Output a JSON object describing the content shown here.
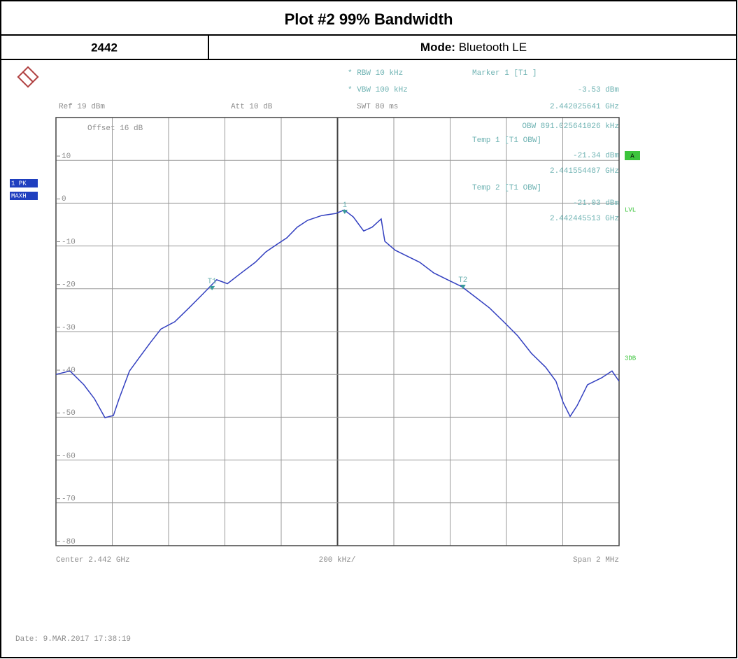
{
  "header": {
    "title": "Plot #2 99% Bandwidth",
    "channel": "2442",
    "mode_label": "Mode:",
    "mode": "Bluetooth LE"
  },
  "chart_data": {
    "type": "line",
    "ref": "Ref  19 dBm",
    "att": "Att  10 dB",
    "offset": "Offset  16 dB",
    "rbw": "* RBW  10 kHz",
    "vbw": "* VBW  100 kHz",
    "swt": "SWT  80 ms",
    "obw": "OBW 891.025641026 kHz",
    "trace_labels": [
      "1 PK",
      "MAXH"
    ],
    "side_labels": [
      "A",
      "LVL",
      "3DB"
    ],
    "center": "Center  2.442 GHz",
    "per_div": "200 kHz/",
    "span": "Span  2 MHz",
    "date": "Date: 9.MAR.2017  17:38:19",
    "xlim": [
      2.441,
      2.443
    ],
    "ylim": [
      -81,
      19
    ],
    "yticks": [
      10,
      0,
      -10,
      -20,
      -30,
      -40,
      -50,
      -60,
      -70,
      -80
    ],
    "grid": true,
    "color": "#3340c0",
    "markers": [
      {
        "name": "Marker 1 [T1 ]",
        "label": "1",
        "x": 2.442025641,
        "y": -3.53,
        "x_label": "2.442025641 GHz",
        "y_label": "-3.53 dBm"
      },
      {
        "name": "Temp 1 [T1 OBW]",
        "label": "T1",
        "x": 2.441554487,
        "y": -21.34,
        "x_label": "2.441554487 GHz",
        "y_label": "-21.34 dBm"
      },
      {
        "name": "Temp 2 [T1 OBW]",
        "label": "T2",
        "x": 2.442445513,
        "y": -21.03,
        "x_label": "2.442445513 GHz",
        "y_label": "-21.03 dBm"
      }
    ],
    "x": [
      2.441,
      2.44105,
      2.441099,
      2.441137,
      2.441174,
      2.441204,
      2.441224,
      2.441261,
      2.441298,
      2.441335,
      2.441373,
      2.441422,
      2.441472,
      2.441522,
      2.441571,
      2.441609,
      2.441658,
      2.441708,
      2.441745,
      2.441783,
      2.44182,
      2.441857,
      2.441894,
      2.441944,
      2.441994,
      2.442024,
      2.442056,
      2.442093,
      2.442123,
      2.442155,
      2.442168,
      2.442205,
      2.442242,
      2.442292,
      2.442342,
      2.442391,
      2.442441,
      2.442491,
      2.44254,
      2.44259,
      2.44264,
      2.442689,
      2.442739,
      2.442776,
      2.442801,
      2.442826,
      2.442851,
      2.442888,
      2.442938,
      2.442975,
      2.443
    ],
    "values": [
      -41.0,
      -40.2,
      -43.4,
      -46.7,
      -51.1,
      -50.6,
      -46.7,
      -40.2,
      -36.9,
      -33.6,
      -30.4,
      -28.7,
      -25.5,
      -22.2,
      -18.9,
      -19.8,
      -17.3,
      -14.8,
      -12.4,
      -10.7,
      -9.1,
      -6.6,
      -5.0,
      -3.9,
      -3.4,
      -2.6,
      -4.2,
      -7.5,
      -6.6,
      -4.7,
      -9.9,
      -12.0,
      -13.2,
      -14.8,
      -17.3,
      -18.9,
      -20.5,
      -23.0,
      -25.5,
      -28.7,
      -32.0,
      -36.1,
      -39.3,
      -42.6,
      -47.5,
      -50.8,
      -48.3,
      -43.4,
      -41.8,
      -40.2,
      -42.6
    ]
  }
}
